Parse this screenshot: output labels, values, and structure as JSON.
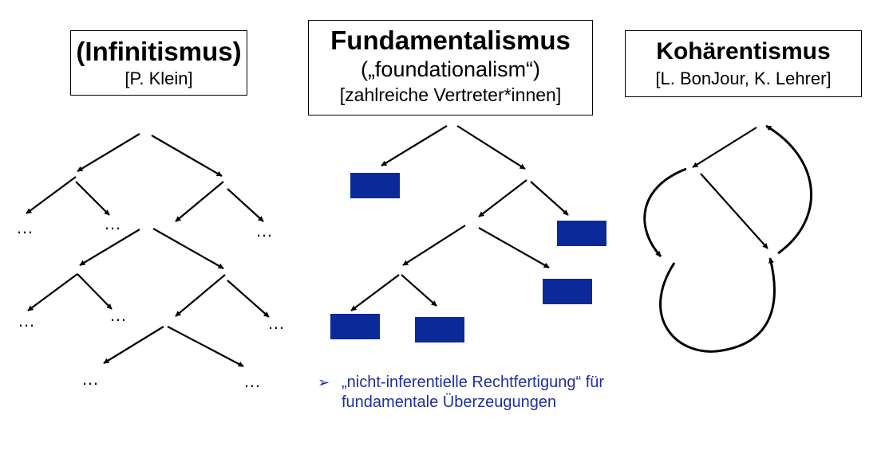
{
  "infinitism": {
    "title": "(Infinitismus)",
    "subtitle": "[P. Klein]"
  },
  "foundationalism": {
    "title": "Fundamentalismus",
    "subtitle": "(„foundationalism“)",
    "representatives": "[zahlreiche Vertreter*innen]"
  },
  "coherentism": {
    "title": "Kohärentismus",
    "subtitle": "[L. BonJour, K. Lehrer]"
  },
  "ellipsis": "…",
  "note": {
    "bullet_icon": "arrow-bullet-icon",
    "line1": "„nicht-inferentielle Rechtfertigung“ für",
    "line2": "fundamentale Überzeugungen"
  },
  "colors": {
    "basic_belief_block": "#0a2a99",
    "note_text": "#1f2f9a"
  }
}
